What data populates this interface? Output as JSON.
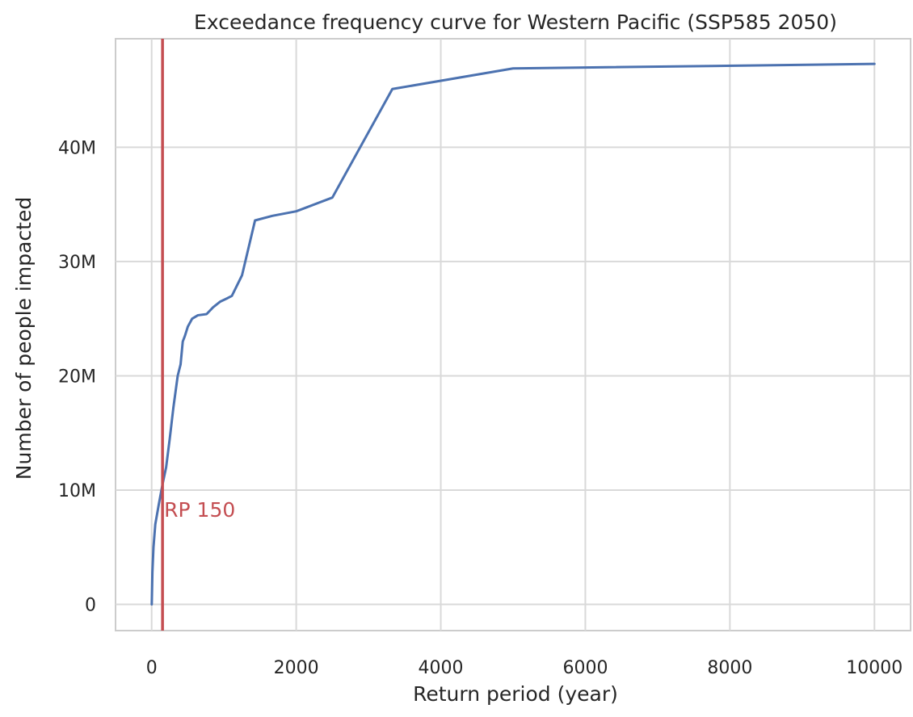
{
  "chart_data": {
    "type": "line",
    "title": "Exceedance frequency curve for Western Pacific (SSP585 2050)",
    "xlabel": "Return period (year)",
    "ylabel": "Number of people impacted",
    "xlim": [
      -500,
      10500
    ],
    "ylim": [
      -2300000,
      49500000
    ],
    "x_ticks": [
      0,
      2000,
      4000,
      6000,
      8000,
      10000
    ],
    "x_tick_labels": [
      "0",
      "2000",
      "4000",
      "6000",
      "8000",
      "10000"
    ],
    "y_ticks": [
      0,
      10000000,
      20000000,
      30000000,
      40000000
    ],
    "y_tick_labels": [
      "0",
      "10M",
      "20M",
      "30M",
      "40M"
    ],
    "grid": true,
    "series": [
      {
        "color": "#4c72b0",
        "x": [
          1,
          10,
          25,
          50,
          100,
          150,
          200,
          250,
          300,
          330,
          360,
          400,
          430,
          460,
          500,
          560,
          640,
          760,
          850,
          950,
          1050,
          1110,
          1250,
          1430,
          1670,
          2000,
          2500,
          3330,
          5000,
          10000
        ],
        "y": [
          0,
          2800000,
          5000000,
          7000000,
          8800000,
          10500000,
          12000000,
          14500000,
          17200000,
          18600000,
          20000000,
          21000000,
          23000000,
          23500000,
          24300000,
          25000000,
          25300000,
          25400000,
          26000000,
          26500000,
          26800000,
          27000000,
          28800000,
          33600000,
          34000000,
          34400000,
          35600000,
          45100000,
          46900000,
          47300000
        ]
      }
    ],
    "annotations": [
      {
        "type": "vline",
        "x": 150,
        "color": "#c44e52",
        "label": "RP 150",
        "label_y": 8300000
      }
    ]
  }
}
